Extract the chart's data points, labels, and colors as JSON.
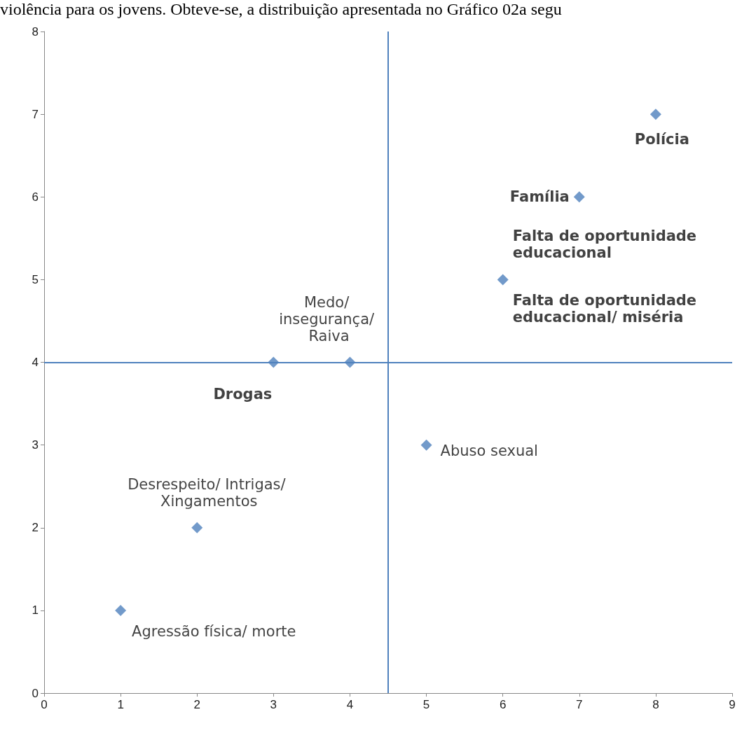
{
  "chart_data": {
    "type": "scatter",
    "annotations": [
      "violência para os jovens. Obteve-se, a distribuição apresentada no Gráfico 02a segu",
      {
        "text": "Agressão física/ morte",
        "x": 1,
        "y": 1
      },
      {
        "text": "Desrespeito/ Intrigas/ Xingamentos",
        "x": 2,
        "y": 2
      },
      {
        "text": "Drogas",
        "x": 3,
        "y": 4
      },
      {
        "text": "Medo/ insegurança/ Raiva",
        "x": 4,
        "y": 4
      },
      {
        "text": "Abuso sexual",
        "x": 5,
        "y": 3
      },
      {
        "text": "Falta de oportunidade educacional/ miséria",
        "x": 6,
        "y": 5
      },
      {
        "text": "Falta de oportunidade educacional",
        "x": 6,
        "y": 5
      },
      {
        "text": "Família",
        "x": 7,
        "y": 6
      },
      {
        "text": "Polícia",
        "x": 8,
        "y": 7
      }
    ],
    "x": [
      1,
      2,
      3,
      4,
      5,
      6,
      7,
      8
    ],
    "series": [
      {
        "color": "#4f81bd",
        "values": [
          1,
          2,
          4,
          4,
          3,
          5,
          6,
          7
        ]
      }
    ],
    "marker": "diamond",
    "xlim": [
      0,
      9
    ],
    "xticks": [
      0,
      1,
      2,
      3,
      4,
      5,
      6,
      7,
      8,
      9
    ],
    "ylim": [
      0,
      8
    ],
    "yticks": [
      0,
      1,
      2,
      3,
      4,
      5,
      6,
      7,
      8
    ],
    "ref_lines": [
      {
        "axis": "x",
        "value": 4.5,
        "color": "#4f81bd"
      },
      {
        "axis": "y",
        "value": 4,
        "color": "#4f81bd"
      }
    ],
    "grid": false
  }
}
